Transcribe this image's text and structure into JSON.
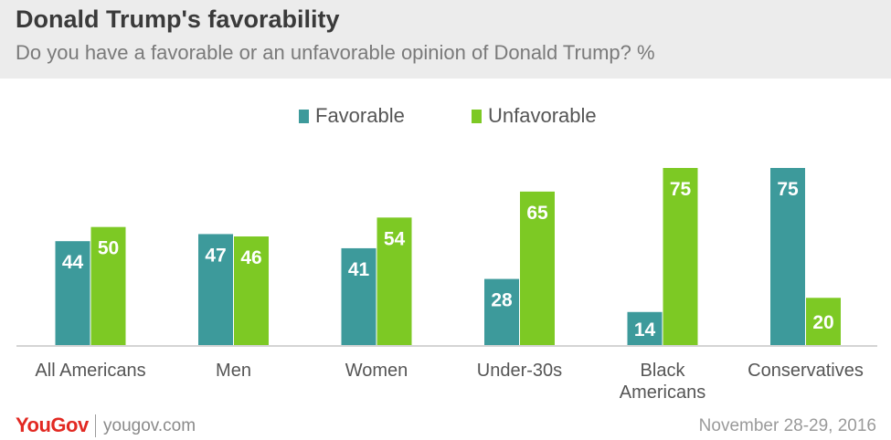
{
  "header": {
    "title": "Donald Trump's favorability",
    "subtitle": "Do you have a favorable or an unfavorable opinion of Donald Trump? %"
  },
  "colors": {
    "favorable": "#3d9a9b",
    "unfavorable": "#7dc924",
    "header_bg": "#ececec",
    "logo": "#e22922"
  },
  "chart_data": {
    "type": "bar",
    "title": "Donald Trump's favorability",
    "subtitle": "Do you have a favorable or an unfavorable opinion of Donald Trump? %",
    "categories": [
      [
        "All Americans"
      ],
      [
        "Men"
      ],
      [
        "Women"
      ],
      [
        "Under-30s"
      ],
      [
        "Black",
        "Americans"
      ],
      [
        "Conservatives"
      ]
    ],
    "series": [
      {
        "name": "Favorable",
        "values": [
          44,
          47,
          41,
          28,
          14,
          75
        ]
      },
      {
        "name": "Unfavorable",
        "values": [
          50,
          46,
          54,
          65,
          75,
          20
        ]
      }
    ],
    "ylim": [
      0,
      75
    ],
    "grid": false,
    "legend": "top-center"
  },
  "footer": {
    "logo": "YouGov",
    "url": "yougov.com",
    "date": "November 28-29, 2016"
  }
}
